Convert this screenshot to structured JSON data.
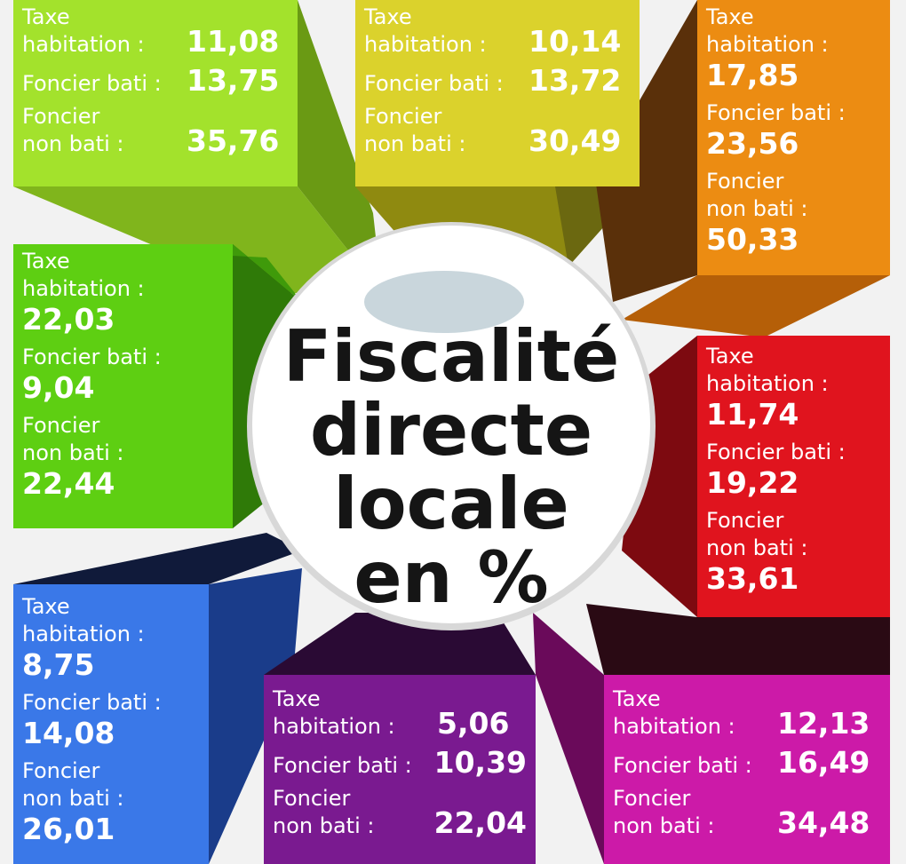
{
  "title": [
    "Fiscalité",
    "directe",
    "locale",
    "en %"
  ],
  "boxes": [
    {
      "items": [
        {
          "label": "Taxe\nhabitation :",
          "value": "11,08"
        },
        {
          "label": "Foncier bati :",
          "value": "13,75"
        },
        {
          "label": "Foncier\nnon bati :",
          "value": "35,76"
        }
      ]
    },
    {
      "items": [
        {
          "label": "Taxe\nhabitation :",
          "value": "10,14"
        },
        {
          "label": "Foncier bati :",
          "value": "13,72"
        },
        {
          "label": "Foncier\nnon bati :",
          "value": "30,49"
        }
      ]
    },
    {
      "items": [
        {
          "label": "Taxe\nhabitation :",
          "value": "17,85"
        },
        {
          "label": "Foncier bati :",
          "value": "23,56"
        },
        {
          "label": "Foncier\nnon bati :",
          "value": "50,33"
        }
      ]
    },
    {
      "items": [
        {
          "label": "Taxe\nhabitation :",
          "value": "22,03"
        },
        {
          "label": "Foncier bati :",
          "value": "9,04"
        },
        {
          "label": "Foncier\nnon bati :",
          "value": "22,44"
        }
      ]
    },
    {
      "items": [
        {
          "label": "Taxe\nhabitation :",
          "value": "11,74"
        },
        {
          "label": "Foncier bati :",
          "value": "19,22"
        },
        {
          "label": "Foncier\nnon bati :",
          "value": "33,61"
        }
      ]
    },
    {
      "items": [
        {
          "label": "Taxe\nhabitation :",
          "value": "8,75"
        },
        {
          "label": "Foncier bati :",
          "value": "14,08"
        },
        {
          "label": "Foncier\nnon bati :",
          "value": "26,01"
        }
      ]
    },
    {
      "items": [
        {
          "label": "Taxe\nhabitation :",
          "value": "5,06"
        },
        {
          "label": "Foncier bati :",
          "value": "10,39"
        },
        {
          "label": "Foncier\nnon bati :",
          "value": "22,04"
        }
      ]
    },
    {
      "items": [
        {
          "label": "Taxe\nhabitation :",
          "value": "12,13"
        },
        {
          "label": "Foncier bati :",
          "value": "16,49"
        },
        {
          "label": "Foncier\nnon bati :",
          "value": "34,48"
        }
      ]
    }
  ]
}
